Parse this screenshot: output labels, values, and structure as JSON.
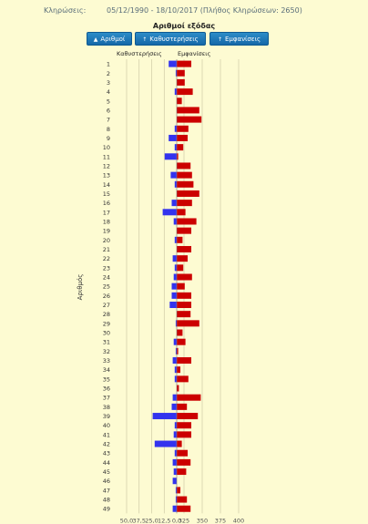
{
  "header": {
    "label": "Κληρώσεις:",
    "range": "05/12/1990 - 18/10/2017  (Πλήθος Κληρώσεων: 2650)"
  },
  "subtitle": "Αριθμοί εξόδας",
  "buttons": [
    {
      "label": "Αριθμοί",
      "arrow": "▲"
    },
    {
      "label": "Καθυστερήσεις",
      "arrow": "↑"
    },
    {
      "label": "Εμφανίσεις",
      "arrow": "↑"
    }
  ],
  "colors": {
    "delay": "#3333ee",
    "appearance": "#cc0000",
    "grid": "#c8c4a0"
  },
  "chart_data": {
    "type": "bar",
    "ylabel": "Αριθμός",
    "left_header": "Καθυστερήσεις",
    "right_header": "Εμφανίσεις",
    "categories": [
      "1",
      "2",
      "3",
      "4",
      "5",
      "6",
      "7",
      "8",
      "9",
      "10",
      "11",
      "12",
      "13",
      "14",
      "15",
      "16",
      "17",
      "18",
      "19",
      "20",
      "21",
      "22",
      "23",
      "24",
      "25",
      "26",
      "27",
      "28",
      "29",
      "30",
      "31",
      "32",
      "33",
      "34",
      "35",
      "36",
      "37",
      "38",
      "39",
      "40",
      "41",
      "42",
      "43",
      "44",
      "45",
      "46",
      "47",
      "48",
      "49"
    ],
    "left_ticks": [
      "50,0",
      "37,5",
      "25,0",
      "12,5",
      "0,0"
    ],
    "right_ticks": [
      "325",
      "350",
      "375",
      "400"
    ],
    "series": [
      {
        "name": "Καθυστερήσεις",
        "values": [
          8,
          1,
          0,
          2,
          0,
          0,
          0,
          2,
          8,
          2,
          12,
          0,
          6,
          2,
          0,
          5,
          14,
          3,
          0,
          2,
          0,
          4,
          2,
          3,
          5,
          5,
          7,
          0,
          1,
          0,
          3,
          1,
          4,
          2,
          2,
          0,
          4,
          5,
          24,
          2,
          3,
          22,
          2,
          4,
          3,
          4,
          1,
          1,
          4
        ]
      },
      {
        "name": "Εμφανίσεις",
        "values": [
          335,
          326,
          326,
          337,
          322,
          346,
          349,
          331,
          330,
          324,
          317,
          334,
          336,
          338,
          346,
          336,
          327,
          342,
          335,
          323,
          335,
          330,
          324,
          336,
          326,
          335,
          335,
          334,
          346,
          323,
          327,
          317,
          335,
          320,
          331,
          318,
          348,
          329,
          344,
          335,
          335,
          322,
          330,
          334,
          328,
          315,
          320,
          329,
          334
        ]
      }
    ]
  }
}
